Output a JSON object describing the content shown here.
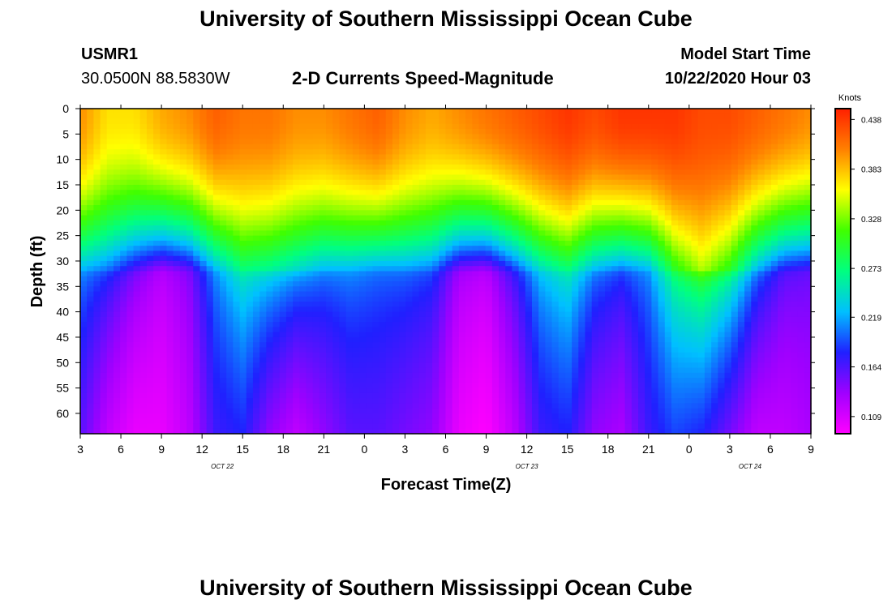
{
  "header": {
    "title_top": "University of Southern Mississippi Ocean Cube",
    "title_bottom": "University of Southern Mississippi Ocean Cube",
    "station_id": "USMR1",
    "station_coords": "30.0500N 88.5830W",
    "plot_title": "2-D Currents Speed-Magnitude",
    "model_start_label": "Model Start Time",
    "model_start_value": "10/22/2020 Hour 03"
  },
  "chart_data": {
    "type": "heatmap",
    "title": "2-D Currents Speed-Magnitude",
    "xlabel": "Forecast Time(Z)",
    "ylabel": "Depth (ft)",
    "x_ticks": [
      "3",
      "6",
      "9",
      "12",
      "15",
      "18",
      "21",
      "0",
      "3",
      "6",
      "9",
      "12",
      "15",
      "18",
      "21",
      "0",
      "3",
      "6",
      "9"
    ],
    "x_range_hours": [
      0,
      54
    ],
    "date_labels": [
      {
        "text": "OCT  22",
        "hour": 10.5
      },
      {
        "text": "OCT  23",
        "hour": 33
      },
      {
        "text": "OCT  24",
        "hour": 49.5
      }
    ],
    "y_ticks": [
      "0",
      "5",
      "10",
      "15",
      "20",
      "25",
      "30",
      "35",
      "40",
      "45",
      "50",
      "55",
      "60"
    ],
    "y_range_ft": [
      0,
      64
    ],
    "colorbar": {
      "title": "Knots",
      "ticks": [
        "0.438",
        "0.383",
        "0.328",
        "0.273",
        "0.219",
        "0.164",
        "0.109"
      ],
      "range": [
        0.09,
        0.45
      ],
      "colors": [
        "#ff00ff",
        "#a000ff",
        "#2020ff",
        "#00c0ff",
        "#00ff80",
        "#40ff00",
        "#ffff00",
        "#ff8000",
        "#ff2000"
      ]
    },
    "surface_speed_knots": [
      0.4,
      0.37,
      0.37,
      0.39,
      0.4,
      0.42,
      0.41,
      0.41,
      0.4,
      0.4,
      0.41,
      0.42,
      0.4,
      0.39,
      0.4,
      0.41,
      0.42,
      0.43,
      0.44,
      0.43,
      0.44,
      0.44,
      0.44,
      0.43,
      0.43,
      0.42,
      0.41,
      0.4
    ],
    "mid_depth_speed_knots": [
      0.22,
      0.2,
      0.16,
      0.13,
      0.15,
      0.22,
      0.27,
      0.26,
      0.24,
      0.22,
      0.22,
      0.21,
      0.21,
      0.2,
      0.14,
      0.13,
      0.18,
      0.24,
      0.27,
      0.22,
      0.2,
      0.22,
      0.3,
      0.34,
      0.3,
      0.22,
      0.17,
      0.16
    ],
    "bottom_speed_knots": [
      0.16,
      0.12,
      0.1,
      0.1,
      0.12,
      0.17,
      0.18,
      0.14,
      0.12,
      0.14,
      0.16,
      0.16,
      0.15,
      0.14,
      0.1,
      0.09,
      0.12,
      0.17,
      0.18,
      0.14,
      0.13,
      0.17,
      0.19,
      0.18,
      0.15,
      0.12,
      0.12,
      0.13
    ]
  }
}
